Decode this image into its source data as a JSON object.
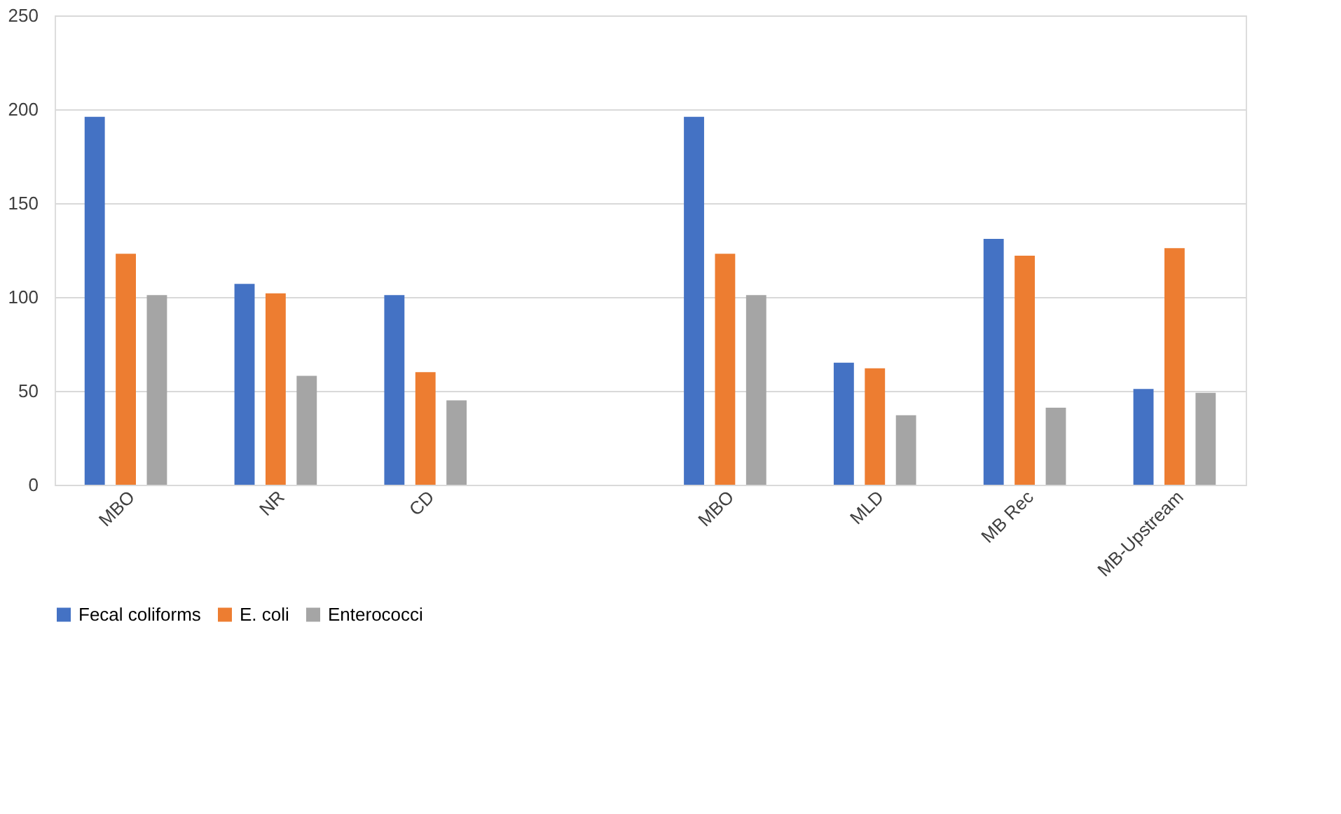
{
  "chart_data": {
    "type": "bar",
    "categories": [
      "MBO",
      "NR",
      "CD",
      null,
      "MBO",
      "MLD",
      "MB Rec",
      "MB-Upstream"
    ],
    "series": [
      {
        "name": "Fecal coliforms",
        "color": "#4472c4",
        "values": [
          196,
          107,
          101,
          null,
          196,
          65,
          131,
          51
        ]
      },
      {
        "name": "E. coli",
        "color": "#ed7d31",
        "values": [
          123,
          102,
          60,
          null,
          123,
          62,
          122,
          126
        ]
      },
      {
        "name": "Enterococci",
        "color": "#a5a5a5",
        "values": [
          101,
          58,
          45,
          null,
          101,
          37,
          41,
          49
        ]
      }
    ],
    "ylim": [
      0,
      250
    ],
    "yticks": [
      0,
      50,
      100,
      150,
      200,
      250
    ],
    "grid": "y",
    "legend": "bottom"
  }
}
